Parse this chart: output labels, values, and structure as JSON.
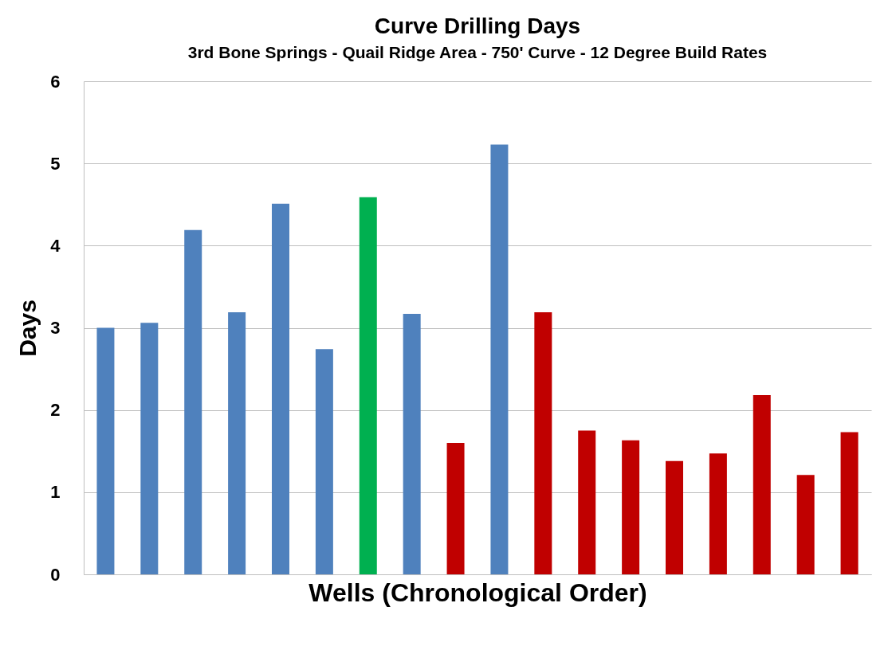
{
  "chart_data": {
    "type": "bar",
    "title": "Curve Drilling Days",
    "subtitle": "3rd Bone Springs - Quail Ridge Area - 750' Curve - 12 Degree Build Rates",
    "xlabel": "Wells (Chronological Order)",
    "ylabel": "Days",
    "categories": [
      null,
      null,
      null,
      null,
      null,
      null,
      null,
      null,
      null,
      null,
      null,
      null,
      null,
      null,
      null,
      null,
      null,
      null
    ],
    "values": [
      3.0,
      3.06,
      4.19,
      3.19,
      4.51,
      2.74,
      4.59,
      3.17,
      1.6,
      5.23,
      3.19,
      1.75,
      1.63,
      1.38,
      1.47,
      2.18,
      1.21,
      1.73
    ],
    "colors": [
      "#4f81bd",
      "#4f81bd",
      "#4f81bd",
      "#4f81bd",
      "#4f81bd",
      "#4f81bd",
      "#00b050",
      "#4f81bd",
      "#c00000",
      "#4f81bd",
      "#c00000",
      "#c00000",
      "#c00000",
      "#c00000",
      "#c00000",
      "#c00000",
      "#c00000",
      "#c00000"
    ],
    "ylim": [
      0,
      6
    ],
    "yticks": [
      0,
      1,
      2,
      3,
      4,
      5,
      6
    ],
    "grid": "y"
  }
}
